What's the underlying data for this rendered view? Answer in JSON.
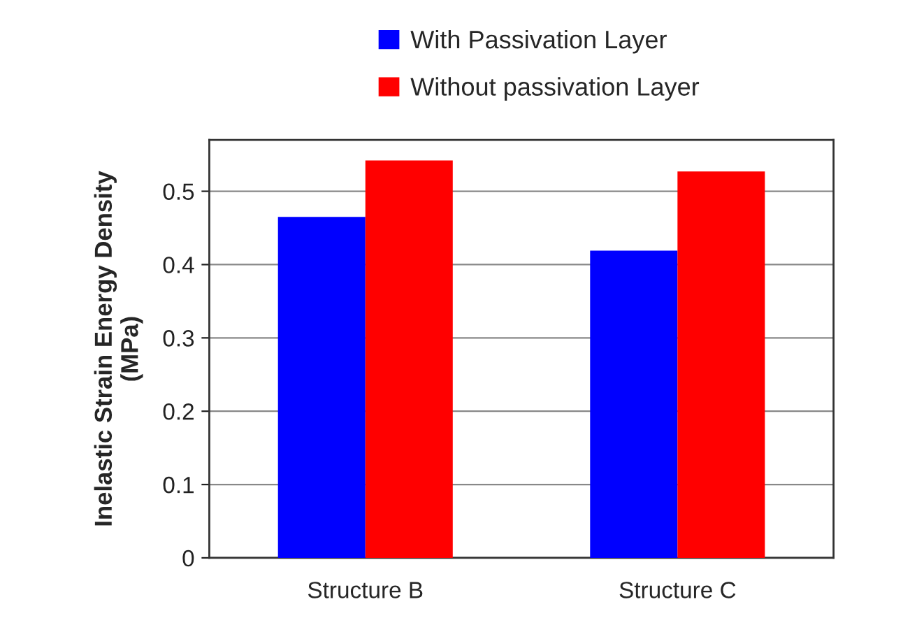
{
  "chart_data": {
    "type": "bar",
    "ylabel": "Inelastic Strain Energy Density\n(MPa)",
    "categories": [
      "Structure B",
      "Structure C"
    ],
    "series": [
      {
        "name": "With Passivation Layer",
        "color": "#0000ff",
        "values": [
          0.465,
          0.419
        ]
      },
      {
        "name": "Without passivation Layer",
        "color": "#ff0000",
        "values": [
          0.542,
          0.527
        ]
      }
    ],
    "ylim": [
      0,
      0.57
    ],
    "yticks": [
      0,
      0.1,
      0.2,
      0.3,
      0.4,
      0.5
    ],
    "grid": "y",
    "legend": "top"
  }
}
